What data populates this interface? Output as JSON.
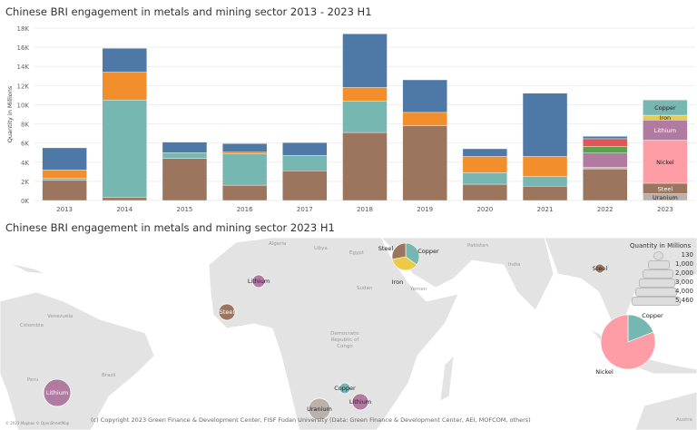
{
  "chart_data": {
    "type": "bar",
    "stacked": true,
    "title": "Chinese BRI engagement in metals and mining sector 2013 - 2023 H1",
    "xlabel": "",
    "ylabel": "Quantity in Millions",
    "ylim": [
      0,
      18000
    ],
    "yticks": [
      "0K",
      "2K",
      "4K",
      "6K",
      "8K",
      "10K",
      "12K",
      "14K",
      "16K",
      "18K"
    ],
    "grid": true,
    "categories": [
      "2013",
      "2014",
      "2015",
      "2016",
      "2017",
      "2018",
      "2019",
      "2020",
      "2021",
      "2022",
      "2023"
    ],
    "series": [
      {
        "id": "uranium",
        "name": "Uranium",
        "color": "#bab0ac",
        "values": [
          0,
          0,
          0,
          0,
          0,
          0,
          0,
          0,
          0,
          0,
          700
        ]
      },
      {
        "id": "steel",
        "name": "Steel",
        "color": "#9c755f",
        "values": [
          2100,
          300,
          4400,
          1600,
          3100,
          7100,
          7800,
          1700,
          1500,
          3300,
          1100
        ]
      },
      {
        "id": "nickel",
        "name": "Nickel",
        "color": "#ff9da7",
        "values": [
          0,
          0,
          0,
          0,
          0,
          0,
          0,
          0,
          0,
          150,
          4500
        ]
      },
      {
        "id": "lithium",
        "name": "Lithium",
        "color": "#b07aa1",
        "values": [
          0,
          0,
          0,
          0,
          0,
          0,
          0,
          0,
          0,
          1500,
          2100
        ]
      },
      {
        "id": "iron",
        "name": "Iron",
        "color": "#edc948",
        "values": [
          0,
          0,
          0,
          0,
          0,
          0,
          0,
          0,
          0,
          0,
          500
        ]
      },
      {
        "id": "copper",
        "name": "Copper",
        "color": "#76b7b2",
        "values": [
          200,
          10200,
          600,
          3300,
          1600,
          3300,
          0,
          1200,
          1000,
          0,
          1600
        ]
      },
      {
        "id": "green",
        "color": "#59a14f",
        "values": [
          0,
          0,
          0,
          0,
          0,
          0,
          0,
          0,
          0,
          700,
          0
        ]
      },
      {
        "id": "red",
        "color": "#e15759",
        "values": [
          0,
          0,
          0,
          0,
          0,
          0,
          0,
          0,
          0,
          800,
          0
        ]
      },
      {
        "id": "orange",
        "color": "#f28e2b",
        "values": [
          900,
          2900,
          0,
          150,
          0,
          1400,
          1400,
          1700,
          2100,
          0,
          0
        ]
      },
      {
        "id": "blue",
        "color": "#4e79a7",
        "values": [
          2300,
          2500,
          1100,
          900,
          1350,
          5600,
          3400,
          800,
          6600,
          250,
          0
        ]
      }
    ],
    "segment_labels_category": "2023"
  },
  "map": {
    "title": "Chinese BRI engagement in metals and mining sector 2023 H1",
    "countries": [
      "Algeria",
      "Libya",
      "Egypt",
      "Sudan",
      "Yemen",
      "Pakistan",
      "India",
      "Democratic Republic of Congo",
      "Venezuela",
      "Colombia",
      "Peru",
      "Brazil",
      "Austra"
    ],
    "markers": [
      {
        "label": "Lithium",
        "color": "#b07aa1"
      },
      {
        "label": "Steel",
        "color": "#9c755f"
      },
      {
        "label": "Lithium",
        "color": "#b07aa1"
      },
      {
        "label": "Steel",
        "color": "#9c755f"
      },
      {
        "label": "Copper",
        "color": "#76b7b2"
      },
      {
        "label": "Lithium",
        "color": "#b07aa1"
      },
      {
        "label": "Uranium",
        "color": "#bab0ac"
      }
    ],
    "pies": [
      {
        "slices": [
          {
            "label": "Copper",
            "value": 35,
            "color": "#76b7b2"
          },
          {
            "label": "Iron",
            "value": 37,
            "color": "#edc948"
          },
          {
            "label": "Steel",
            "value": 28,
            "color": "#9c755f"
          }
        ]
      },
      {
        "slices": [
          {
            "label": "Copper",
            "value": 19,
            "color": "#76b7b2"
          },
          {
            "label": "Nickel",
            "value": 81,
            "color": "#ff9da7"
          }
        ]
      }
    ],
    "legend": {
      "title": "Quantity in Millions",
      "sizes": [
        "130",
        "1,000",
        "2,000",
        "3,000",
        "4,000",
        "5,460"
      ]
    },
    "attribution": "© 2023 Mapbox © OpenStreetMap",
    "credit": "(c) Copyright 2023 Green Finance & Development Center, FISF Fudan University (Data: Green Finance & Development Center, AEI, MOFCOM, others)"
  }
}
